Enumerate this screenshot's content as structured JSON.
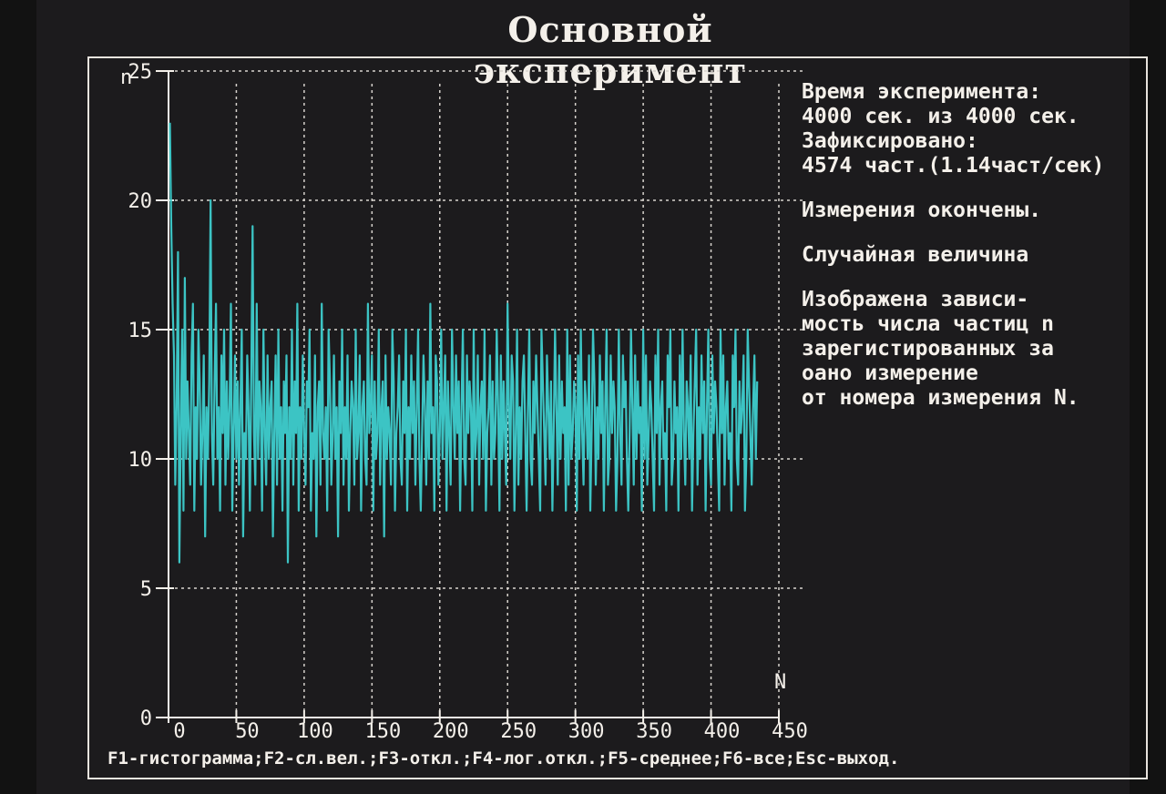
{
  "title": "Основной эксперимент",
  "info": {
    "time_label": "Время эксперимента:",
    "time_value": "4000 сек. из 4000 сек.",
    "fixed_label": "Зафиксировано:",
    "fixed_value": "4574 част.(1.14част/сек)",
    "status": "Измерения окончены.",
    "mode": "Случайная величина",
    "desc_lines": [
      "Изображена зависи-",
      "мость числа частиц n",
      "зарегистированных за",
      "оано измерение",
      "от номера измерения N."
    ]
  },
  "footer": {
    "keys": [
      "F1-гистограмма;",
      "F2-сл.вел.;",
      "F3-откл.;",
      "F4-лог.откл.;",
      "F5-среднее;",
      "F6-все;",
      "Esc-выход."
    ]
  },
  "colors": {
    "series": "#3cc4c4",
    "text": "#f4f0ea",
    "grid": "#d8d4ce",
    "background": "#1c1b1d"
  },
  "chart_data": {
    "type": "line",
    "title": "",
    "xlabel": "N",
    "ylabel": "n",
    "xlim": [
      0,
      450
    ],
    "ylim": [
      0,
      25
    ],
    "x_ticks": [
      "0",
      "50",
      "100",
      "150",
      "200",
      "250",
      "300",
      "350",
      "400",
      "450"
    ],
    "y_ticks": [
      "0",
      "5",
      "10",
      "15",
      "20",
      "25"
    ],
    "grid": true,
    "series": [
      {
        "name": "",
        "x_start": 1,
        "x_step": 1,
        "values": [
          23,
          19,
          16,
          14,
          9,
          12,
          18,
          6,
          11,
          15,
          8,
          17,
          10,
          13,
          11,
          9,
          14,
          16,
          8,
          12,
          10,
          15,
          13,
          9,
          11,
          14,
          7,
          12,
          10,
          13,
          20,
          11,
          9,
          13,
          16,
          10,
          12,
          8,
          14,
          11,
          15,
          9,
          13,
          10,
          12,
          16,
          8,
          11,
          14,
          10,
          13,
          9,
          12,
          15,
          7,
          11,
          10,
          14,
          12,
          8,
          13,
          19,
          11,
          9,
          16,
          10,
          13,
          12,
          8,
          15,
          11,
          9,
          14,
          10,
          12,
          13,
          7,
          11,
          14,
          9,
          15,
          10,
          12,
          8,
          13,
          11,
          14,
          6,
          12,
          10,
          15,
          9,
          13,
          11,
          16,
          8,
          12,
          10,
          14,
          11,
          9,
          13,
          12,
          15,
          8,
          11,
          10,
          14,
          7,
          12,
          13,
          9,
          16,
          11,
          10,
          12,
          8,
          15,
          13,
          9,
          11,
          14,
          10,
          12,
          7,
          13,
          11,
          15,
          9,
          12,
          10,
          14,
          8,
          11,
          13,
          12,
          9,
          15,
          10,
          11,
          14,
          8,
          12,
          13,
          10,
          9,
          16,
          11,
          12,
          14,
          8,
          13,
          10,
          11,
          15,
          9,
          12,
          13,
          7,
          14,
          10,
          12,
          11,
          9,
          15,
          13,
          8,
          11,
          12,
          14,
          10,
          9,
          13,
          11,
          15,
          8,
          12,
          10,
          14,
          11,
          13,
          9,
          12,
          15,
          10,
          8,
          11,
          14,
          12,
          9,
          13,
          10,
          16,
          11,
          12,
          8,
          14,
          13,
          9,
          11,
          15,
          10,
          12,
          14,
          8,
          13,
          11,
          9,
          15,
          12,
          10,
          14,
          11,
          13,
          8,
          12,
          15,
          10,
          9,
          14,
          11,
          13,
          12,
          8,
          15,
          10,
          11,
          14,
          9,
          12,
          13,
          10,
          15,
          8,
          11,
          12,
          14,
          9,
          13,
          10,
          11,
          15,
          12,
          8,
          14,
          10,
          13,
          11,
          9,
          16,
          12,
          10,
          14,
          13,
          8,
          11,
          15,
          9,
          12,
          10,
          13,
          14,
          11,
          8,
          12,
          15,
          10,
          9,
          13,
          11,
          14,
          12,
          10,
          8,
          15,
          13,
          11,
          9,
          14,
          12,
          10,
          13,
          8,
          11,
          15,
          12,
          9,
          14,
          10,
          13,
          11,
          12,
          8,
          15,
          9,
          14,
          10,
          11,
          13,
          12,
          8,
          14,
          10,
          15,
          11,
          9,
          13,
          12,
          10,
          14,
          8,
          11,
          15,
          13,
          9,
          12,
          10,
          14,
          11,
          13,
          8,
          12,
          15,
          9,
          10,
          14,
          11,
          13,
          12,
          8,
          10,
          15,
          11,
          9,
          14,
          12,
          13,
          10,
          8,
          11,
          15,
          12,
          9,
          14,
          10,
          13,
          11,
          12,
          8,
          15,
          10,
          14,
          9,
          11,
          13,
          12,
          10,
          8,
          14,
          11,
          15,
          9,
          12,
          13,
          10,
          11,
          8,
          14,
          12,
          15,
          9,
          10,
          13,
          11,
          12,
          8,
          14,
          10,
          15,
          11,
          9,
          13,
          12,
          10,
          14,
          8,
          11,
          13,
          15,
          9,
          12,
          10,
          14,
          11,
          13,
          8,
          12,
          15,
          10,
          9,
          14,
          11,
          13,
          12,
          10,
          8,
          15,
          11,
          14,
          9,
          12,
          13,
          10,
          11,
          8,
          14,
          12,
          15,
          10,
          9,
          13,
          11,
          12,
          14,
          8,
          10,
          15,
          13,
          11,
          9,
          12,
          14,
          10,
          13
        ]
      }
    ]
  }
}
